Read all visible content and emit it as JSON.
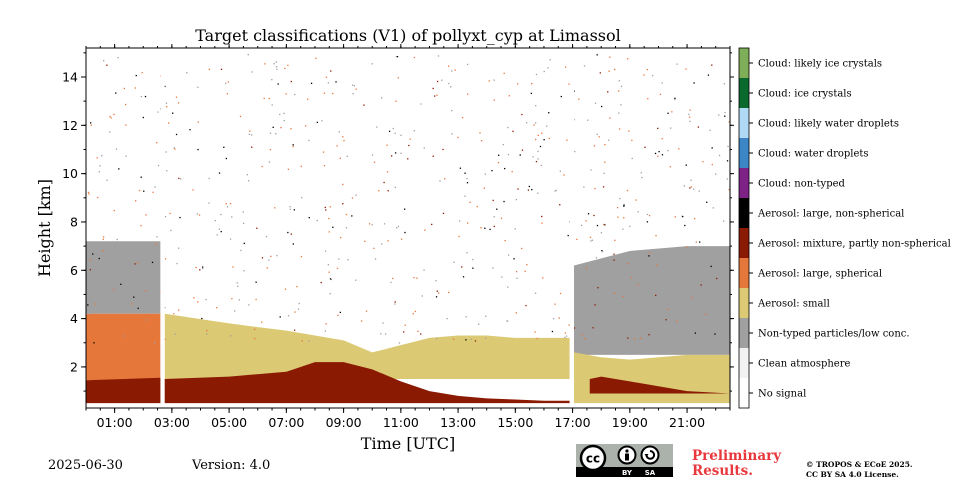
{
  "chart_data": {
    "type": "heatmap",
    "title": "Target classifications (V1) of pollyxt_cyp at Limassol",
    "xlabel": "Time [UTC]",
    "ylabel": "Height [km]",
    "xlim": [
      0,
      22.5
    ],
    "ylim": [
      0.3,
      15.2
    ],
    "x_ticks": [
      {
        "v": 1,
        "label": "01:00"
      },
      {
        "v": 3,
        "label": "03:00"
      },
      {
        "v": 5,
        "label": "05:00"
      },
      {
        "v": 7,
        "label": "07:00"
      },
      {
        "v": 9,
        "label": "09:00"
      },
      {
        "v": 11,
        "label": "11:00"
      },
      {
        "v": 13,
        "label": "13:00"
      },
      {
        "v": 15,
        "label": "15:00"
      },
      {
        "v": 17,
        "label": "17:00"
      },
      {
        "v": 19,
        "label": "19:00"
      },
      {
        "v": 21,
        "label": "21:00"
      }
    ],
    "y_ticks": [
      {
        "v": 2,
        "label": "2"
      },
      {
        "v": 4,
        "label": "4"
      },
      {
        "v": 6,
        "label": "6"
      },
      {
        "v": 8,
        "label": "8"
      },
      {
        "v": 10,
        "label": "10"
      },
      {
        "v": 12,
        "label": "12"
      },
      {
        "v": 14,
        "label": "14"
      }
    ],
    "colorbar": {
      "classes": [
        {
          "label": "No signal",
          "color": "#ffffff"
        },
        {
          "label": "Clean atmosphere",
          "color": "#f2f2f2"
        },
        {
          "label": "Non-typed particles/low conc.",
          "color": "#a0a0a0"
        },
        {
          "label": "Aerosol: small",
          "color": "#dbc974"
        },
        {
          "label": "Aerosol: large, spherical",
          "color": "#e6773b"
        },
        {
          "label": "Aerosol: mixture, partly non-spherical",
          "color": "#8b1a02"
        },
        {
          "label": "Aerosol: large, non-spherical",
          "color": "#000000"
        },
        {
          "label": "Cloud: non-typed",
          "color": "#7f2288"
        },
        {
          "label": "Cloud: water droplets",
          "color": "#3d86c6"
        },
        {
          "label": "Cloud: likely water droplets",
          "color": "#b0d9f5"
        },
        {
          "label": "Cloud: ice crystals",
          "color": "#0a6a2d"
        },
        {
          "label": "Cloud: likely ice crystals",
          "color": "#7fae58"
        }
      ]
    },
    "no_data_gaps": [
      {
        "start": 2.6,
        "end": 2.75
      },
      {
        "start": 16.9,
        "end": 17.05
      }
    ],
    "layers": [
      {
        "class": "Aerosol: mixture, partly non-spherical",
        "x": [
          0,
          2.6,
          2.75,
          5,
          7,
          8,
          9,
          10,
          11,
          12,
          13,
          14,
          15,
          16,
          16.9
        ],
        "y_bottom": 0.5,
        "y_top": [
          1.45,
          1.55,
          1.5,
          1.6,
          1.8,
          2.2,
          2.2,
          1.9,
          1.4,
          1.0,
          0.8,
          0.7,
          0.65,
          0.6,
          0.6
        ]
      },
      {
        "class": "Aerosol: mixture, partly non-spherical",
        "x": [
          17.6,
          18,
          19,
          20,
          21,
          22.5
        ],
        "y_bottom": 0.9,
        "y_top": [
          1.5,
          1.6,
          1.4,
          1.2,
          1.0,
          0.9
        ]
      },
      {
        "class": "Aerosol: large, spherical",
        "x": [
          0,
          2.6
        ],
        "y_bottom": 1.45,
        "y_top": [
          4.2,
          4.2
        ]
      },
      {
        "class": "Aerosol: small",
        "x": [
          2.75,
          5,
          7,
          9,
          10,
          11,
          12,
          13,
          14,
          15,
          16,
          16.9
        ],
        "y_bottom": 1.5,
        "y_top": [
          4.2,
          3.8,
          3.5,
          3.1,
          2.6,
          2.9,
          3.2,
          3.3,
          3.3,
          3.2,
          3.2,
          3.2
        ]
      },
      {
        "class": "Aerosol: small",
        "x": [
          17.05,
          18,
          19,
          20,
          21,
          22.5
        ],
        "y_bottom": 0.5,
        "y_top": [
          2.6,
          2.4,
          2.3,
          2.4,
          2.5,
          2.5
        ]
      },
      {
        "class": "Non-typed particles/low conc.",
        "x": [
          0,
          2.6
        ],
        "y_bottom": 4.2,
        "y_top": [
          7.2,
          7.2
        ]
      },
      {
        "class": "Non-typed particles/low conc.",
        "x": [
          17.05,
          19,
          21,
          22.5
        ],
        "y_bottom": 2.5,
        "y_top": [
          6.2,
          6.8,
          7.0,
          7.0
        ]
      }
    ]
  },
  "footer": {
    "date": "2025-06-30",
    "version": "Version: 4.0",
    "license_badge": {
      "cc": "cc",
      "by": "BY",
      "sa": "SA"
    },
    "preliminary": [
      "Preliminary",
      "Results."
    ],
    "copyright": [
      "© TROPOS & ECoE 2025.",
      "CC BY SA 4.0 License."
    ]
  }
}
